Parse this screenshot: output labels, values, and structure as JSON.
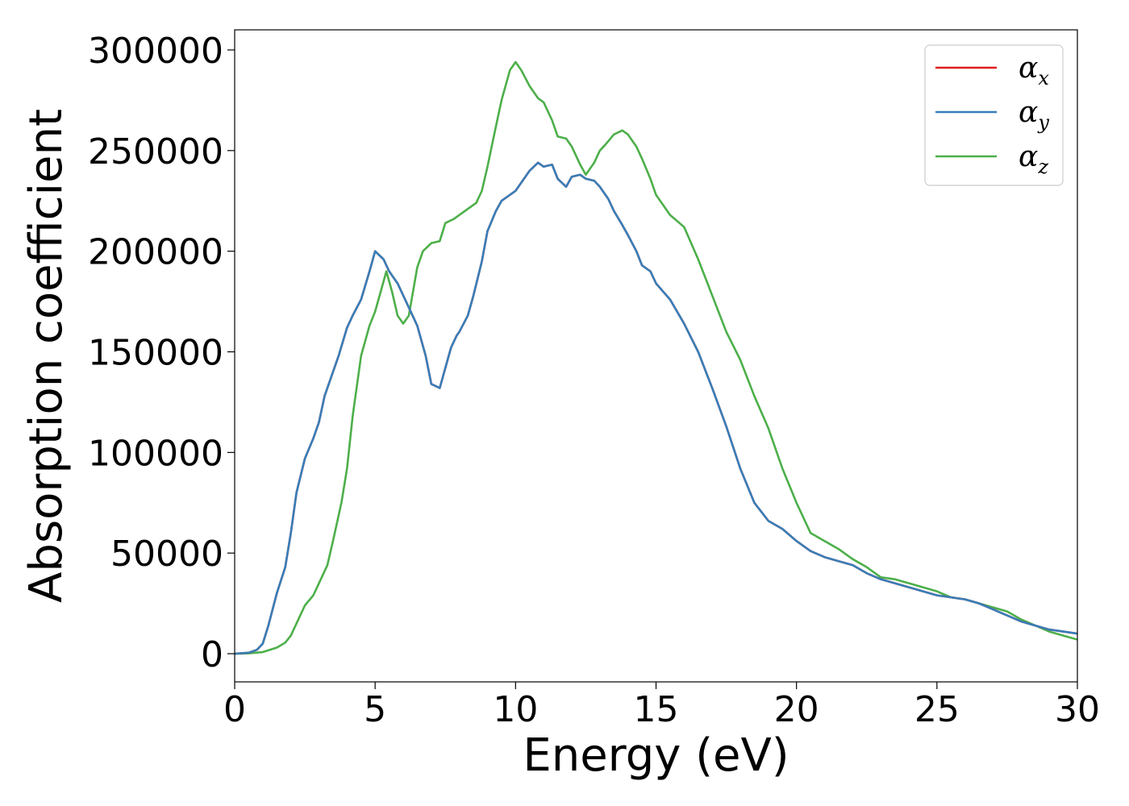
{
  "chart_data": {
    "type": "line",
    "title": "",
    "xlabel": "Energy (eV)",
    "ylabel": "Absorption coefficient",
    "xlim": [
      0,
      30
    ],
    "ylim": [
      -14000,
      310000
    ],
    "xticks": [
      0,
      5,
      10,
      15,
      20,
      25,
      30
    ],
    "yticks": [
      0,
      50000,
      100000,
      150000,
      200000,
      250000,
      300000
    ],
    "xtick_labels": [
      "0",
      "5",
      "10",
      "15",
      "20",
      "25",
      "30"
    ],
    "ytick_labels": [
      "0",
      "50000",
      "100000",
      "150000",
      "200000",
      "250000",
      "300000"
    ],
    "grid": false,
    "legend_position": "top-right",
    "series": [
      {
        "name": "α_x",
        "label_base": "α",
        "label_sub": "x",
        "color": "#e41a1c",
        "x": [
          0,
          0.5,
          0.8,
          1.0,
          1.2,
          1.5,
          1.8,
          2.0,
          2.2,
          2.5,
          2.8,
          3.0,
          3.2,
          3.5,
          3.7,
          4.0,
          4.2,
          4.5,
          4.8,
          5.0,
          5.3,
          5.5,
          5.8,
          6.0,
          6.2,
          6.5,
          6.8,
          7.0,
          7.3,
          7.5,
          7.7,
          7.9,
          8.0,
          8.3,
          8.5,
          8.8,
          9.0,
          9.3,
          9.5,
          9.8,
          10.0,
          10.3,
          10.5,
          10.8,
          11.0,
          11.3,
          11.5,
          11.8,
          12.0,
          12.3,
          12.5,
          12.8,
          13.0,
          13.3,
          13.5,
          13.8,
          14.0,
          14.3,
          14.5,
          14.8,
          15.0,
          15.5,
          16.0,
          16.5,
          17.0,
          17.5,
          18.0,
          18.5,
          19.0,
          19.5,
          20.0,
          20.5,
          21.0,
          21.5,
          22.0,
          22.5,
          23.0,
          23.5,
          24.0,
          24.5,
          25.0,
          25.5,
          26.0,
          26.5,
          27.0,
          27.5,
          28.0,
          28.5,
          29.0,
          29.5,
          30.0
        ],
        "y": [
          0,
          500,
          2000,
          5000,
          14000,
          30000,
          43000,
          60000,
          80000,
          97000,
          107000,
          115000,
          128000,
          140000,
          148000,
          162000,
          168000,
          176000,
          190000,
          200000,
          196000,
          190000,
          184000,
          178000,
          172000,
          163000,
          148000,
          134000,
          132000,
          142000,
          152000,
          158000,
          160000,
          168000,
          178000,
          195000,
          210000,
          220000,
          225000,
          228000,
          230000,
          236000,
          240000,
          244000,
          242000,
          243000,
          236000,
          232000,
          237000,
          238000,
          236000,
          235000,
          232000,
          226000,
          220000,
          213000,
          208000,
          200000,
          193000,
          190000,
          184000,
          176000,
          164000,
          150000,
          132000,
          113000,
          92000,
          75000,
          66000,
          62000,
          56000,
          51000,
          48000,
          46000,
          44000,
          40000,
          37000,
          35000,
          33000,
          31000,
          29000,
          28000,
          27000,
          25000,
          22000,
          19000,
          16000,
          14000,
          12000,
          11000,
          10000
        ],
        "x_note": "",
        "visible_note": ""
      },
      {
        "name": "α_y",
        "label_base": "α",
        "label_sub": "y",
        "color": "#377eb8",
        "x": [
          0,
          0.5,
          0.8,
          1.0,
          1.2,
          1.5,
          1.8,
          2.0,
          2.2,
          2.5,
          2.8,
          3.0,
          3.2,
          3.5,
          3.7,
          4.0,
          4.2,
          4.5,
          4.8,
          5.0,
          5.3,
          5.5,
          5.8,
          6.0,
          6.2,
          6.5,
          6.8,
          7.0,
          7.3,
          7.5,
          7.7,
          7.9,
          8.0,
          8.3,
          8.5,
          8.8,
          9.0,
          9.3,
          9.5,
          9.8,
          10.0,
          10.3,
          10.5,
          10.8,
          11.0,
          11.3,
          11.5,
          11.8,
          12.0,
          12.3,
          12.5,
          12.8,
          13.0,
          13.3,
          13.5,
          13.8,
          14.0,
          14.3,
          14.5,
          14.8,
          15.0,
          15.5,
          16.0,
          16.5,
          17.0,
          17.5,
          18.0,
          18.5,
          19.0,
          19.5,
          20.0,
          20.5,
          21.0,
          21.5,
          22.0,
          22.5,
          23.0,
          23.5,
          24.0,
          24.5,
          25.0,
          25.5,
          26.0,
          26.5,
          27.0,
          27.5,
          28.0,
          28.5,
          29.0,
          29.5,
          30.0
        ],
        "y": [
          0,
          500,
          2000,
          5000,
          14000,
          30000,
          43000,
          60000,
          80000,
          97000,
          107000,
          115000,
          128000,
          140000,
          148000,
          162000,
          168000,
          176000,
          190000,
          200000,
          196000,
          190000,
          184000,
          178000,
          172000,
          163000,
          148000,
          134000,
          132000,
          142000,
          152000,
          158000,
          160000,
          168000,
          178000,
          195000,
          210000,
          220000,
          225000,
          228000,
          230000,
          236000,
          240000,
          244000,
          242000,
          243000,
          236000,
          232000,
          237000,
          238000,
          236000,
          235000,
          232000,
          226000,
          220000,
          213000,
          208000,
          200000,
          193000,
          190000,
          184000,
          176000,
          164000,
          150000,
          132000,
          113000,
          92000,
          75000,
          66000,
          62000,
          56000,
          51000,
          48000,
          46000,
          44000,
          40000,
          37000,
          35000,
          33000,
          31000,
          29000,
          28000,
          27000,
          25000,
          22000,
          19000,
          16000,
          14000,
          12000,
          11000,
          10000
        ],
        "x_note": "",
        "visible_note": ""
      },
      {
        "name": "α_z",
        "label_base": "α",
        "label_sub": "z",
        "color": "#4daf4a",
        "x": [
          0,
          0.5,
          1.0,
          1.5,
          1.8,
          2.0,
          2.3,
          2.5,
          2.8,
          3.0,
          3.3,
          3.5,
          3.8,
          4.0,
          4.2,
          4.5,
          4.8,
          5.0,
          5.2,
          5.4,
          5.6,
          5.8,
          6.0,
          6.2,
          6.5,
          6.7,
          7.0,
          7.3,
          7.5,
          7.8,
          8.0,
          8.2,
          8.4,
          8.6,
          8.8,
          9.0,
          9.3,
          9.5,
          9.8,
          10.0,
          10.2,
          10.5,
          10.8,
          11.0,
          11.3,
          11.5,
          11.8,
          12.0,
          12.3,
          12.5,
          12.8,
          13.0,
          13.2,
          13.5,
          13.8,
          14.0,
          14.3,
          14.5,
          14.8,
          15.0,
          15.3,
          15.5,
          16.0,
          16.5,
          17.0,
          17.5,
          18.0,
          18.5,
          19.0,
          19.5,
          20.0,
          20.5,
          21.0,
          21.5,
          22.0,
          22.5,
          23.0,
          23.5,
          24.0,
          24.5,
          25.0,
          25.5,
          26.0,
          26.5,
          27.0,
          27.5,
          28.0,
          28.5,
          29.0,
          29.5,
          30.0
        ],
        "y": [
          0,
          200,
          800,
          3000,
          5500,
          9000,
          18000,
          24000,
          29000,
          35000,
          44000,
          56000,
          75000,
          92000,
          118000,
          148000,
          163000,
          170000,
          180000,
          190000,
          180000,
          168000,
          164000,
          168000,
          192000,
          200000,
          204000,
          205000,
          214000,
          216000,
          218000,
          220000,
          222000,
          224000,
          230000,
          242000,
          262000,
          275000,
          290000,
          294000,
          290000,
          282000,
          276000,
          274000,
          265000,
          257000,
          256000,
          252000,
          243000,
          238000,
          244000,
          250000,
          253000,
          258000,
          260000,
          258000,
          252000,
          246000,
          236000,
          228000,
          222000,
          218000,
          212000,
          196000,
          178000,
          160000,
          146000,
          128000,
          112000,
          92000,
          75000,
          60000,
          56000,
          52000,
          47000,
          43000,
          38000,
          37000,
          35000,
          33000,
          31000,
          28000,
          27000,
          25000,
          23000,
          21000,
          17000,
          14000,
          11000,
          9000,
          7000
        ],
        "x_note": "",
        "visible_note": ""
      }
    ]
  }
}
